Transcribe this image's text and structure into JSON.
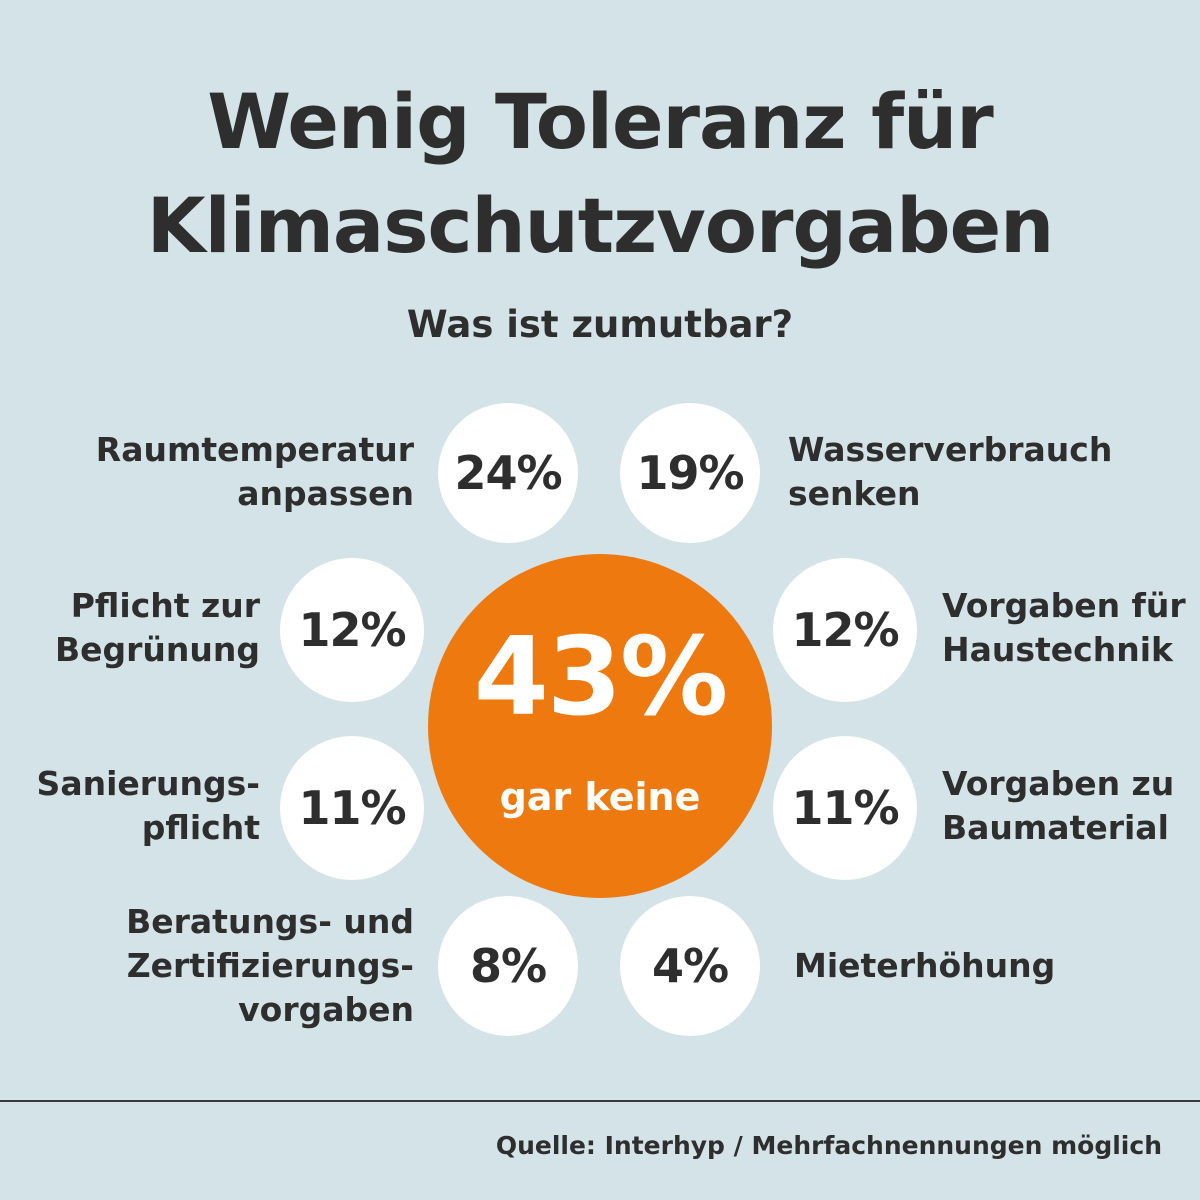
{
  "title_line1": "Wenig Toleranz für",
  "title_line2": "Klimaschutzvorgaben",
  "subtitle": "Was ist zumutbar?",
  "source": "Quelle: Interhyp / Mehrfachnennungen möglich",
  "colors": {
    "background": "#d3e3e8",
    "highlight": "#ee7a0f",
    "bubble": "#ffffff",
    "text": "#2e2e2e"
  },
  "chart_data": {
    "type": "bubble-infographic",
    "unit": "%",
    "highlight": {
      "value": 43,
      "display": "43%",
      "label": "gar keine"
    },
    "items": [
      {
        "label": "Raumtemperatur anpassen",
        "lines": [
          "Raumtemperatur",
          "anpassen"
        ],
        "value": 24,
        "display": "24%"
      },
      {
        "label": "Wasserverbrauch senken",
        "lines": [
          "Wasserverbrauch",
          "senken"
        ],
        "value": 19,
        "display": "19%"
      },
      {
        "label": "Pflicht zur Begrünung",
        "lines": [
          "Pflicht zur",
          "Begrünung"
        ],
        "value": 12,
        "display": "12%"
      },
      {
        "label": "Vorgaben für Haustechnik",
        "lines": [
          "Vorgaben für",
          "Haustechnik"
        ],
        "value": 12,
        "display": "12%"
      },
      {
        "label": "Sanierungspflicht",
        "lines": [
          "Sanierungs-",
          "pflicht"
        ],
        "value": 11,
        "display": "11%"
      },
      {
        "label": "Vorgaben zu Baumaterial",
        "lines": [
          "Vorgaben zu",
          "Baumaterial"
        ],
        "value": 11,
        "display": "11%"
      },
      {
        "label": "Beratungs- und Zertifizierungsvorgaben",
        "lines": [
          "Beratungs- und",
          "Zertifizierungs-",
          "vorgaben"
        ],
        "value": 8,
        "display": "8%"
      },
      {
        "label": "Mieterhöhung",
        "lines": [
          "Mieterhöhung"
        ],
        "value": 4,
        "display": "4%"
      }
    ]
  }
}
